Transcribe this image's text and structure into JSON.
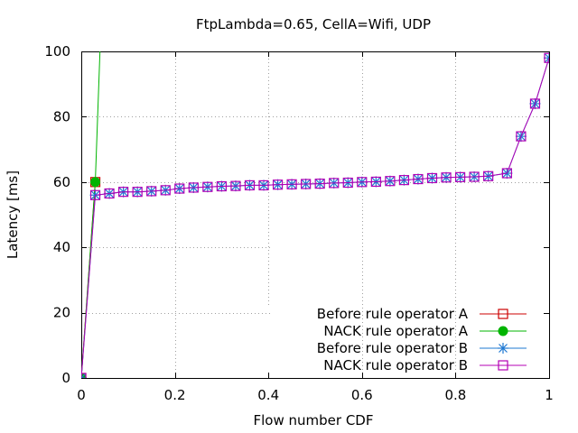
{
  "chart_data": {
    "type": "line",
    "title": "FtpLambda=0.65, CellA=Wifi, UDP",
    "xlabel": "Flow number CDF",
    "ylabel": "Latency [ms]",
    "xlim": [
      0,
      1
    ],
    "ylim": [
      0,
      100
    ],
    "xticks": [
      "0",
      "0.2",
      "0.4",
      "0.6",
      "0.8",
      "1"
    ],
    "yticks": [
      "0",
      "20",
      "40",
      "60",
      "80",
      "100"
    ],
    "grid": true,
    "legend_position": "bottom-right",
    "series": [
      {
        "name": "Before rule operator A",
        "color": "#cc0000",
        "marker": "open-square",
        "points": [
          [
            0,
            0
          ],
          [
            0.03,
            60
          ]
        ]
      },
      {
        "name": "NACK rule operator A",
        "color": "#00b400",
        "marker": "filled-circle",
        "points": [
          [
            0,
            0
          ],
          [
            0.03,
            60
          ],
          [
            0.04,
            100
          ]
        ]
      },
      {
        "name": "Before rule operator B",
        "color": "#1e78d2",
        "marker": "star",
        "points": [
          [
            0,
            0
          ],
          [
            0.03,
            56
          ],
          [
            0.06,
            56.5
          ],
          [
            0.09,
            57
          ],
          [
            0.12,
            57
          ],
          [
            0.15,
            57.2
          ],
          [
            0.18,
            57.5
          ],
          [
            0.21,
            58
          ],
          [
            0.24,
            58.3
          ],
          [
            0.27,
            58.5
          ],
          [
            0.3,
            58.7
          ],
          [
            0.33,
            58.8
          ],
          [
            0.36,
            59
          ],
          [
            0.39,
            59
          ],
          [
            0.42,
            59.2
          ],
          [
            0.45,
            59.3
          ],
          [
            0.48,
            59.4
          ],
          [
            0.51,
            59.5
          ],
          [
            0.54,
            59.7
          ],
          [
            0.57,
            59.8
          ],
          [
            0.6,
            60
          ],
          [
            0.63,
            60.1
          ],
          [
            0.66,
            60.3
          ],
          [
            0.69,
            60.6
          ],
          [
            0.72,
            60.9
          ],
          [
            0.75,
            61.2
          ],
          [
            0.78,
            61.4
          ],
          [
            0.81,
            61.5
          ],
          [
            0.84,
            61.6
          ],
          [
            0.87,
            61.8
          ],
          [
            0.91,
            62.7
          ],
          [
            0.94,
            74
          ],
          [
            0.97,
            84
          ],
          [
            1.0,
            98
          ]
        ]
      },
      {
        "name": "NACK rule operator B",
        "color": "#b400b4",
        "marker": "open-square",
        "points": [
          [
            0,
            0
          ],
          [
            0.03,
            56
          ],
          [
            0.06,
            56.5
          ],
          [
            0.09,
            57
          ],
          [
            0.12,
            57
          ],
          [
            0.15,
            57.2
          ],
          [
            0.18,
            57.5
          ],
          [
            0.21,
            58
          ],
          [
            0.24,
            58.3
          ],
          [
            0.27,
            58.5
          ],
          [
            0.3,
            58.7
          ],
          [
            0.33,
            58.8
          ],
          [
            0.36,
            59
          ],
          [
            0.39,
            59
          ],
          [
            0.42,
            59.2
          ],
          [
            0.45,
            59.3
          ],
          [
            0.48,
            59.4
          ],
          [
            0.51,
            59.5
          ],
          [
            0.54,
            59.7
          ],
          [
            0.57,
            59.8
          ],
          [
            0.6,
            60
          ],
          [
            0.63,
            60.1
          ],
          [
            0.66,
            60.3
          ],
          [
            0.69,
            60.6
          ],
          [
            0.72,
            60.9
          ],
          [
            0.75,
            61.2
          ],
          [
            0.78,
            61.4
          ],
          [
            0.81,
            61.5
          ],
          [
            0.84,
            61.6
          ],
          [
            0.87,
            61.8
          ],
          [
            0.91,
            62.7
          ],
          [
            0.94,
            74
          ],
          [
            0.97,
            84
          ],
          [
            1.0,
            98
          ]
        ]
      }
    ]
  }
}
